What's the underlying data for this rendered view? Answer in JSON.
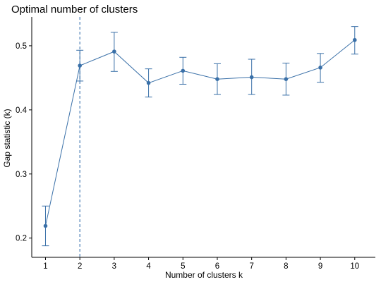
{
  "chart_data": {
    "type": "line",
    "title": "Optimal number of clusters",
    "xlabel": "Number of clusters k",
    "ylabel": "Gap statistic (k)",
    "x": [
      1,
      2,
      3,
      4,
      5,
      6,
      7,
      8,
      9,
      10
    ],
    "x_tick_labels": [
      "1",
      "2",
      "3",
      "4",
      "5",
      "6",
      "7",
      "8",
      "9",
      "10"
    ],
    "y_ticks": [
      0.2,
      0.3,
      0.4,
      0.5
    ],
    "y_tick_labels": [
      "0.2",
      "0.3",
      "0.4",
      "0.5"
    ],
    "xlim": [
      0.6,
      10.6
    ],
    "ylim": [
      0.17,
      0.545
    ],
    "series": [
      {
        "values": [
          0.219,
          0.469,
          0.491,
          0.442,
          0.461,
          0.448,
          0.451,
          0.448,
          0.466,
          0.509
        ],
        "error_low": [
          0.188,
          0.445,
          0.46,
          0.42,
          0.44,
          0.424,
          0.424,
          0.423,
          0.443,
          0.487
        ],
        "error_high": [
          0.25,
          0.493,
          0.521,
          0.464,
          0.482,
          0.472,
          0.479,
          0.473,
          0.488,
          0.53
        ],
        "color": "#3a70a8"
      }
    ],
    "optimal_k": 2,
    "optimal_line_color": "#4a7fb5",
    "grid": false,
    "legend": "none"
  }
}
